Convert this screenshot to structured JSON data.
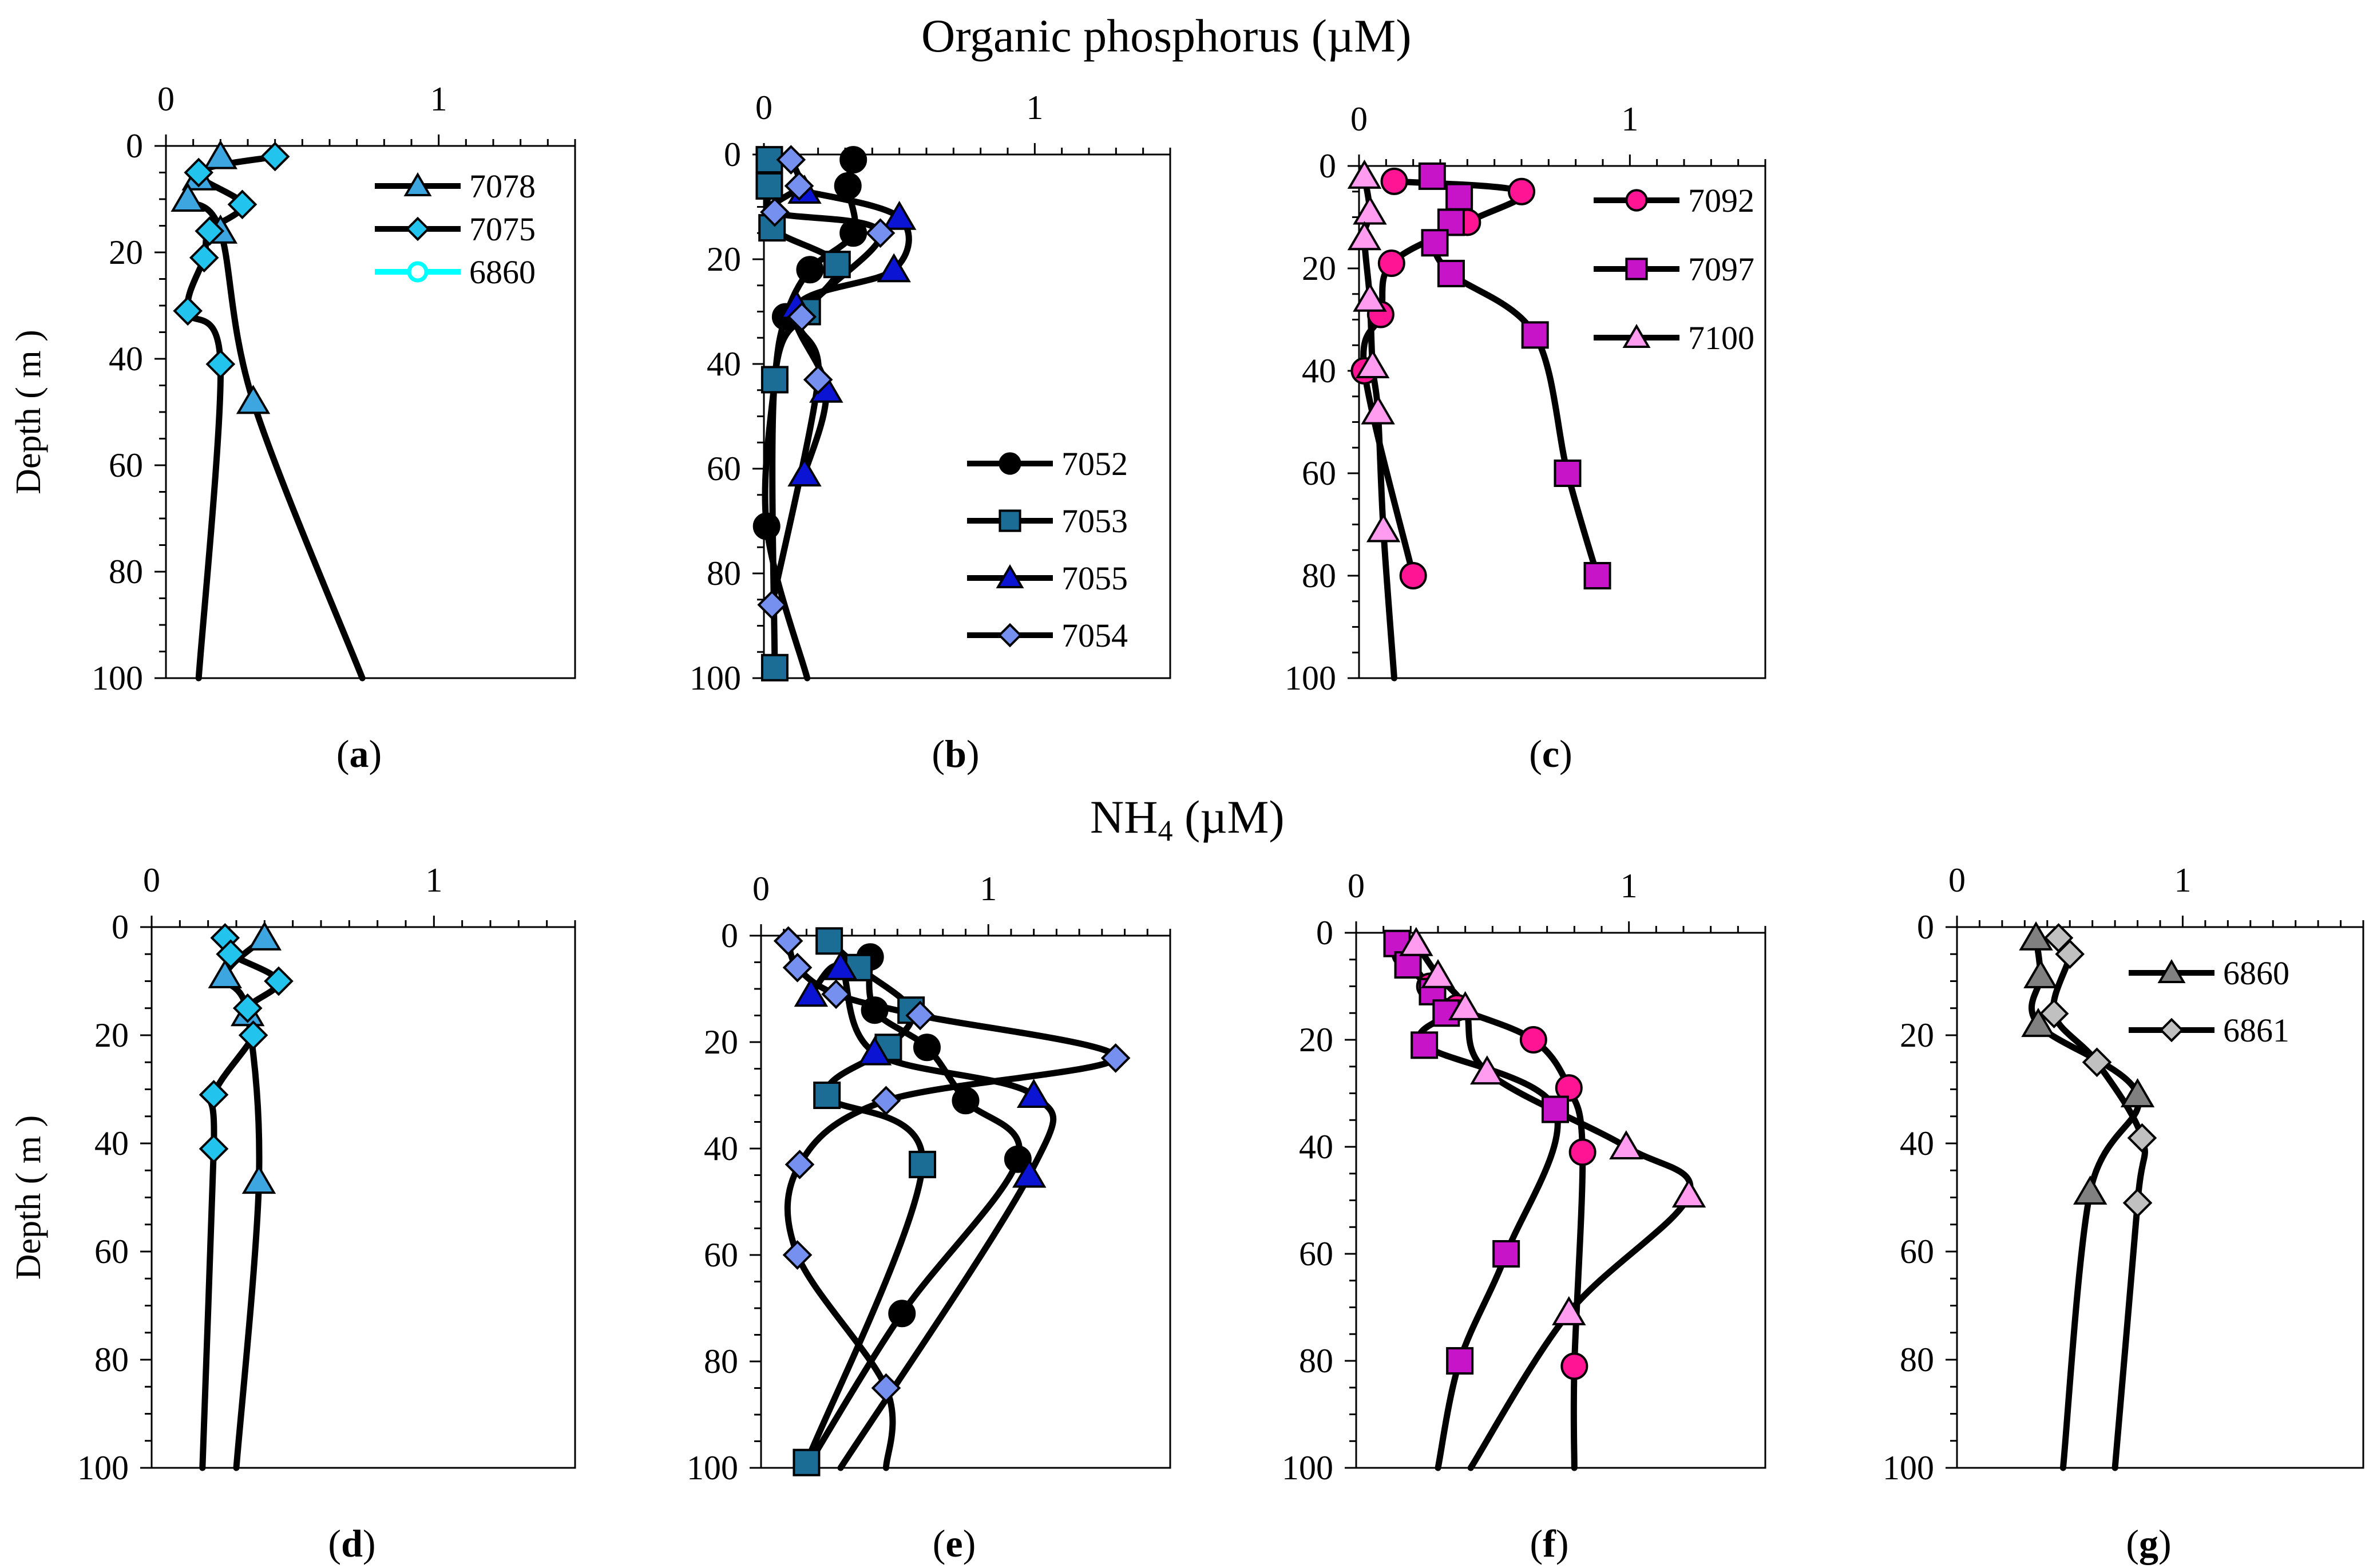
{
  "headings": {
    "top": "Organic phosphorus (µM)",
    "bottom_main": "NH",
    "bottom_sub": "4",
    "bottom_unit": " (µM)"
  },
  "y_label": "Depth  ( m )",
  "colors": {
    "line": "#000000",
    "7078": "#3da5e0",
    "7075": "#22c4ee",
    "6860_top": "#00ffff",
    "7052": "#000000",
    "7053": "#1c6d96",
    "7055": "#0a14d2",
    "7054": "#7590ee",
    "7092": "#ff1493",
    "7097": "#c814c8",
    "7100": "#ff9cf0",
    "6860": "#808080",
    "6861": "#c0c0c0"
  },
  "chart_data": [
    {
      "id": "a",
      "type": "line",
      "caption_letter": "a",
      "xlim": [
        0,
        1.5
      ],
      "ylim": [
        0,
        100
      ],
      "y_inverted": true,
      "grid": false,
      "x_ticks": [
        "0",
        "1"
      ],
      "y_ticks": [
        "0",
        "20",
        "40",
        "60",
        "80",
        "100"
      ],
      "legend": {
        "placement": "top-right",
        "entries": [
          "7078",
          "7075",
          "6860"
        ]
      },
      "series": [
        {
          "name": "7078",
          "marker": "triangle",
          "color_key": "7078",
          "points": [
            [
              0.2,
              2
            ],
            [
              0.12,
              6
            ],
            [
              0.08,
              10
            ],
            [
              0.2,
              16
            ],
            [
              0.32,
              48
            ]
          ],
          "line_to": [
            0.72,
            100
          ]
        },
        {
          "name": "7075",
          "marker": "diamond",
          "color_key": "7075",
          "points": [
            [
              0.4,
              2
            ],
            [
              0.12,
              5
            ],
            [
              0.28,
              11
            ],
            [
              0.16,
              16
            ],
            [
              0.14,
              21
            ],
            [
              0.08,
              31
            ],
            [
              0.2,
              41
            ]
          ],
          "line_to": [
            0.12,
            100
          ]
        },
        {
          "name": "6860",
          "marker": "circle",
          "color_key": "6860_top",
          "open": true,
          "points": []
        }
      ]
    },
    {
      "id": "b",
      "type": "line",
      "caption_letter": "b",
      "xlim": [
        0,
        1.5
      ],
      "ylim": [
        0,
        100
      ],
      "y_inverted": true,
      "grid": false,
      "x_ticks": [
        "0",
        "1"
      ],
      "y_ticks": [
        "0",
        "20",
        "40",
        "60",
        "80",
        "100"
      ],
      "legend": {
        "placement": "bottom-right",
        "entries": [
          "7052",
          "7053",
          "7055",
          "7054"
        ]
      },
      "series": [
        {
          "name": "7052",
          "marker": "circle",
          "color_key": "7052",
          "points": [
            [
              0.33,
              1
            ],
            [
              0.31,
              6
            ],
            [
              0.33,
              15
            ],
            [
              0.17,
              22
            ],
            [
              0.08,
              31
            ],
            [
              0.04,
              43
            ],
            [
              0.01,
              71
            ]
          ],
          "line_to": [
            0.16,
            100
          ]
        },
        {
          "name": "7053",
          "marker": "square",
          "color_key": "7053",
          "points": [
            [
              0.02,
              1
            ],
            [
              0.02,
              6
            ],
            [
              0.03,
              14
            ],
            [
              0.27,
              21
            ],
            [
              0.16,
              30
            ],
            [
              0.04,
              43
            ],
            [
              0.04,
              98
            ]
          ]
        },
        {
          "name": "7055",
          "marker": "triangle",
          "color_key": "7055",
          "points": [
            [
              0.15,
              7
            ],
            [
              0.5,
              12
            ],
            [
              0.48,
              22
            ],
            [
              0.12,
              29
            ],
            [
              0.23,
              45
            ],
            [
              0.15,
              61
            ]
          ]
        },
        {
          "name": "7054",
          "marker": "diamond",
          "color_key": "7054",
          "points": [
            [
              0.1,
              1
            ],
            [
              0.13,
              6
            ],
            [
              0.04,
              11
            ],
            [
              0.43,
              15
            ],
            [
              0.14,
              31
            ],
            [
              0.2,
              43
            ],
            [
              0.03,
              86
            ]
          ]
        }
      ]
    },
    {
      "id": "c",
      "type": "line",
      "caption_letter": "c",
      "xlim": [
        0,
        1.5
      ],
      "ylim": [
        0,
        100
      ],
      "y_inverted": true,
      "grid": false,
      "x_ticks": [
        "0",
        "1"
      ],
      "y_ticks": [
        "0",
        "20",
        "40",
        "60",
        "80",
        "100"
      ],
      "legend": {
        "placement": "top-right",
        "entries": [
          "7092",
          "7097",
          "7100"
        ]
      },
      "series": [
        {
          "name": "7092",
          "marker": "circle",
          "color_key": "7092",
          "points": [
            [
              0.13,
              3
            ],
            [
              0.6,
              5
            ],
            [
              0.4,
              11
            ],
            [
              0.12,
              19
            ],
            [
              0.08,
              29
            ],
            [
              0.02,
              40
            ],
            [
              0.2,
              80
            ]
          ]
        },
        {
          "name": "7097",
          "marker": "square",
          "color_key": "7097",
          "points": [
            [
              0.27,
              2
            ],
            [
              0.37,
              6
            ],
            [
              0.34,
              11
            ],
            [
              0.28,
              15
            ],
            [
              0.34,
              21
            ],
            [
              0.65,
              33
            ],
            [
              0.77,
              60
            ],
            [
              0.88,
              80
            ]
          ]
        },
        {
          "name": "7100",
          "marker": "triangle",
          "color_key": "7100",
          "points": [
            [
              0.02,
              2
            ],
            [
              0.04,
              9
            ],
            [
              0.02,
              14
            ],
            [
              0.04,
              26
            ],
            [
              0.05,
              39
            ],
            [
              0.07,
              48
            ],
            [
              0.09,
              71
            ]
          ],
          "line_to": [
            0.13,
            100
          ]
        }
      ]
    },
    {
      "id": "d",
      "type": "line",
      "caption_letter": "d",
      "xlim": [
        0,
        1.5
      ],
      "ylim": [
        0,
        100
      ],
      "y_inverted": true,
      "grid": false,
      "x_ticks": [
        "0",
        "1"
      ],
      "y_ticks": [
        "0",
        "20",
        "40",
        "60",
        "80",
        "100"
      ],
      "legend": null,
      "series": [
        {
          "name": "7078",
          "marker": "triangle",
          "color_key": "7078",
          "points": [
            [
              0.4,
              2
            ],
            [
              0.26,
              9
            ],
            [
              0.34,
              16
            ],
            [
              0.38,
              47
            ]
          ],
          "line_to": [
            0.3,
            100
          ]
        },
        {
          "name": "7075",
          "marker": "diamond",
          "color_key": "7075",
          "points": [
            [
              0.26,
              2
            ],
            [
              0.28,
              5
            ],
            [
              0.45,
              10
            ],
            [
              0.34,
              15
            ],
            [
              0.36,
              20
            ],
            [
              0.22,
              31
            ],
            [
              0.22,
              41
            ]
          ],
          "line_to": [
            0.18,
            100
          ]
        }
      ]
    },
    {
      "id": "e",
      "type": "line",
      "caption_letter": "e",
      "xlim": [
        0,
        1.8
      ],
      "ylim": [
        0,
        100
      ],
      "y_inverted": true,
      "grid": false,
      "x_ticks": [
        "0",
        "1"
      ],
      "y_ticks": [
        "0",
        "20",
        "40",
        "60",
        "80",
        "100"
      ],
      "legend": null,
      "series": [
        {
          "name": "7052",
          "marker": "circle",
          "color_key": "7052",
          "points": [
            [
              0.48,
              4
            ],
            [
              0.5,
              14
            ],
            [
              0.73,
              21
            ],
            [
              0.9,
              31
            ],
            [
              1.13,
              42
            ],
            [
              0.62,
              71
            ]
          ],
          "line_to": [
            0.2,
            100
          ]
        },
        {
          "name": "7053",
          "marker": "square",
          "color_key": "7053",
          "points": [
            [
              0.3,
              1
            ],
            [
              0.43,
              6
            ],
            [
              0.66,
              14
            ],
            [
              0.56,
              21
            ],
            [
              0.29,
              30
            ],
            [
              0.71,
              43
            ],
            [
              0.2,
              99
            ]
          ]
        },
        {
          "name": "7055",
          "marker": "triangle",
          "color_key": "7055",
          "points": [
            [
              0.22,
              11
            ],
            [
              0.35,
              6
            ],
            [
              0.5,
              22
            ],
            [
              1.2,
              30
            ],
            [
              1.18,
              45
            ]
          ],
          "line_to": [
            0.35,
            100
          ]
        },
        {
          "name": "7054",
          "marker": "diamond",
          "color_key": "7054",
          "points": [
            [
              0.12,
              1
            ],
            [
              0.16,
              6
            ],
            [
              0.33,
              11
            ],
            [
              0.7,
              15
            ],
            [
              1.56,
              23
            ],
            [
              0.55,
              31
            ],
            [
              0.17,
              43
            ],
            [
              0.16,
              60
            ],
            [
              0.55,
              85
            ]
          ],
          "line_to": [
            0.55,
            100
          ]
        }
      ]
    },
    {
      "id": "f",
      "type": "line",
      "caption_letter": "f",
      "xlim": [
        0,
        1.5
      ],
      "ylim": [
        0,
        100
      ],
      "y_inverted": true,
      "grid": false,
      "x_ticks": [
        "0",
        "1"
      ],
      "y_ticks": [
        "0",
        "20",
        "40",
        "60",
        "80",
        "100"
      ],
      "legend": null,
      "series": [
        {
          "name": "7092",
          "marker": "circle",
          "color_key": "7092",
          "points": [
            [
              0.18,
              4
            ],
            [
              0.27,
              10
            ],
            [
              0.37,
              14
            ],
            [
              0.65,
              20
            ],
            [
              0.78,
              29
            ],
            [
              0.83,
              41
            ],
            [
              0.8,
              81
            ]
          ],
          "line_to": [
            0.8,
            100
          ]
        },
        {
          "name": "7097",
          "marker": "square",
          "color_key": "7097",
          "points": [
            [
              0.15,
              2
            ],
            [
              0.19,
              6
            ],
            [
              0.28,
              11
            ],
            [
              0.33,
              15
            ],
            [
              0.25,
              21
            ],
            [
              0.73,
              33
            ],
            [
              0.55,
              60
            ],
            [
              0.38,
              80
            ]
          ],
          "line_to": [
            0.3,
            100
          ]
        },
        {
          "name": "7100",
          "marker": "triangle",
          "color_key": "7100",
          "points": [
            [
              0.22,
              2
            ],
            [
              0.3,
              8
            ],
            [
              0.4,
              14
            ],
            [
              0.48,
              26
            ],
            [
              0.99,
              40
            ],
            [
              1.22,
              49
            ],
            [
              0.78,
              71
            ]
          ],
          "line_to": [
            0.42,
            100
          ]
        }
      ]
    },
    {
      "id": "g",
      "type": "line",
      "caption_letter": "g",
      "xlim": [
        0,
        1.8
      ],
      "ylim": [
        0,
        100
      ],
      "y_inverted": true,
      "grid": false,
      "x_ticks": [
        "0",
        "1"
      ],
      "y_ticks": [
        "0",
        "20",
        "40",
        "60",
        "80",
        "100"
      ],
      "legend": {
        "placement": "top-right",
        "entries": [
          "6860",
          "6861"
        ]
      },
      "series": [
        {
          "name": "6860",
          "marker": "triangle",
          "color_key": "6860",
          "points": [
            [
              0.35,
              2
            ],
            [
              0.37,
              9
            ],
            [
              0.36,
              18
            ],
            [
              0.8,
              31
            ],
            [
              0.59,
              49
            ]
          ],
          "line_to": [
            0.47,
            100
          ]
        },
        {
          "name": "6861",
          "marker": "diamond",
          "color_key": "6861",
          "points": [
            [
              0.45,
              2
            ],
            [
              0.5,
              5
            ],
            [
              0.43,
              16
            ],
            [
              0.62,
              25
            ],
            [
              0.82,
              39
            ],
            [
              0.8,
              51
            ]
          ],
          "line_to": [
            0.7,
            100
          ]
        }
      ]
    }
  ]
}
